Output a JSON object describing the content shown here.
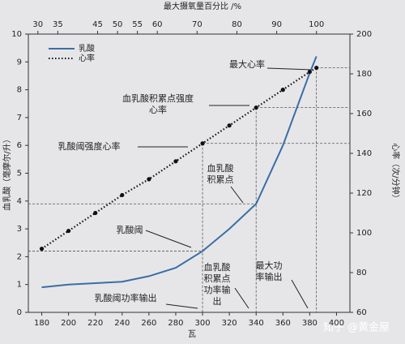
{
  "chart_data": {
    "type": "line",
    "title": "最大摄氧量百分比 /%",
    "x_label": "瓦",
    "y_label": "血乳酸（毫摩尔/升）",
    "y2_label": "心率（次/分钟）",
    "x": [
      180,
      200,
      220,
      240,
      260,
      280,
      300,
      320,
      340,
      360,
      380,
      385
    ],
    "xlim": [
      170,
      410
    ],
    "xticks": [
      180,
      200,
      220,
      240,
      260,
      280,
      300,
      320,
      340,
      360,
      380,
      400
    ],
    "x2lim": [
      27.6,
      108.4
    ],
    "x2ticks": [
      30,
      35,
      45,
      50,
      55,
      60,
      70,
      80,
      90,
      100
    ],
    "ylim": [
      0,
      10
    ],
    "yticks": [
      0,
      1,
      2,
      3,
      4,
      5,
      6,
      7,
      8,
      9,
      10
    ],
    "y2lim": [
      60,
      200
    ],
    "y2ticks": [
      60,
      80,
      100,
      120,
      140,
      160,
      180,
      200
    ],
    "series": [
      {
        "name": "乳酸",
        "color": "#3a6ea5",
        "values": [
          0.9,
          1.0,
          1.05,
          1.1,
          1.3,
          1.6,
          2.2,
          3.0,
          3.9,
          6.0,
          8.6,
          9.2
        ]
      },
      {
        "name": "心率",
        "color": "#111111",
        "axis": "y2",
        "values": [
          92,
          101,
          110,
          119,
          127,
          136,
          145,
          154,
          163,
          172,
          181,
          183
        ]
      }
    ],
    "annotations": [
      {
        "lines": [
          "最大心率"
        ]
      },
      {
        "lines": [
          "血乳酸积累点强度",
          "心率"
        ]
      },
      {
        "lines": [
          "乳酸阈强度心率"
        ]
      },
      {
        "lines": [
          "血乳酸",
          "积累点"
        ]
      },
      {
        "lines": [
          "乳酸阈"
        ]
      },
      {
        "lines": [
          "血乳酸",
          "积累点",
          "功率输",
          "出"
        ]
      },
      {
        "lines": [
          "乳酸阈功率输出"
        ]
      },
      {
        "lines": [
          "最大功",
          "率输出"
        ]
      }
    ],
    "watermark": "知乎 @黄金屋"
  }
}
